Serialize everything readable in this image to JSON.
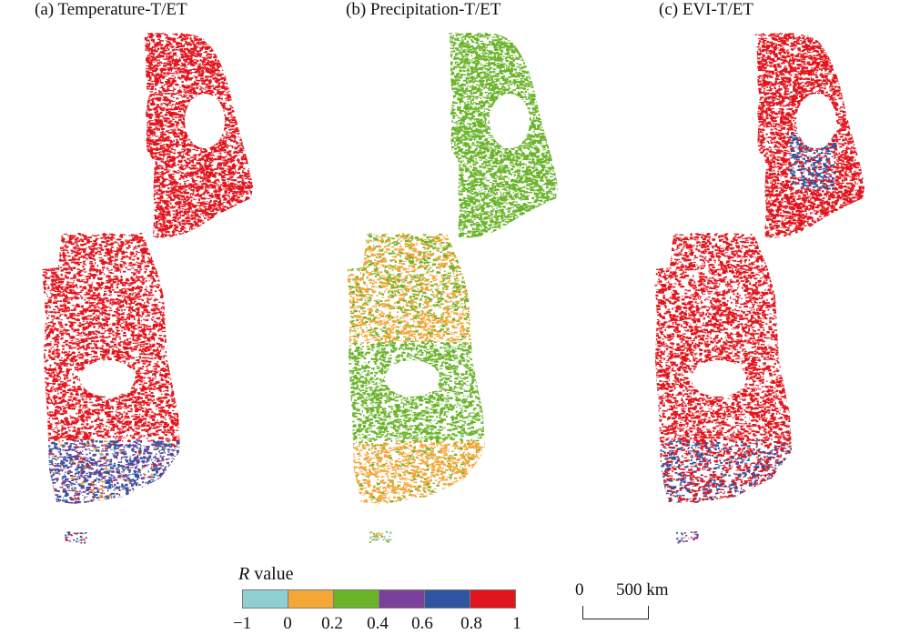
{
  "panels": [
    {
      "id": "a",
      "title": "(a) Temperature-T/ET",
      "north": "red",
      "south_main": "red",
      "south_tail": "mixed-blue-purple"
    },
    {
      "id": "b",
      "title": "(b) Precipitation-T/ET",
      "north": "green",
      "south_main": "green",
      "south_tail": "orange"
    },
    {
      "id": "c",
      "title": "(c) EVI-T/ET",
      "north": "red",
      "south_main": "red",
      "south_tail": "red-blue"
    }
  ],
  "legend": {
    "title_var": "R",
    "title_rest": " value",
    "classes": [
      {
        "color": "#8ecfd1"
      },
      {
        "color": "#f4a636"
      },
      {
        "color": "#6ab42a"
      },
      {
        "color": "#7b3f9c"
      },
      {
        "color": "#2f54a0"
      },
      {
        "color": "#e2141c"
      }
    ],
    "ticks": [
      "−1",
      "0",
      "0.2",
      "0.4",
      "0.6",
      "0.8",
      "1"
    ]
  },
  "scalebar": {
    "left_label": "0",
    "right_label": "500 km"
  },
  "colors": {
    "red": "#e2141c",
    "green": "#6ab42a",
    "orange": "#f4a636",
    "blue": "#2f54a0",
    "purple": "#7b3f9c",
    "cyan": "#8ecfd1"
  }
}
